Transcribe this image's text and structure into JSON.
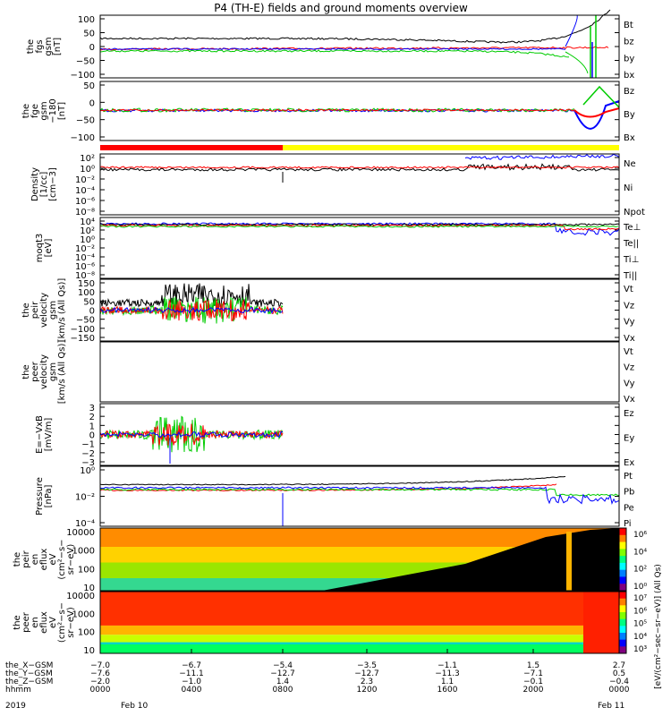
{
  "title": "P4 (TH-E) fields and ground moments overview",
  "colors": {
    "black": "#000000",
    "red": "#ff0000",
    "green": "#00cc00",
    "blue": "#0000ff",
    "yellow": "#ffff00"
  },
  "chart_data": [
    {
      "type": "line",
      "ylabel": [
        "the",
        "fgs",
        "gsm",
        "[nT]"
      ],
      "yticks": [
        "100",
        "50",
        "0",
        "−50",
        "−100"
      ],
      "ylim": [
        -100,
        100
      ],
      "legend": [
        {
          "name": "Bt",
          "color": "black"
        },
        {
          "name": "bz",
          "color": "red"
        },
        {
          "name": "by",
          "color": "green"
        },
        {
          "name": "bx",
          "color": "blue"
        }
      ]
    },
    {
      "type": "line",
      "ylabel": [
        "the",
        "fge",
        "gsm",
        "−180",
        "[nT]"
      ],
      "yticks": [
        "50",
        "0",
        "−50",
        "−100"
      ],
      "ylim": [
        -135,
        60
      ],
      "legend": [
        {
          "name": "Bz",
          "color": "red"
        },
        {
          "name": "By",
          "color": "green"
        },
        {
          "name": "Bx",
          "color": "blue"
        }
      ]
    },
    {
      "type": "line",
      "ylabel": [
        "Density",
        "[1/cc]",
        "[cm−3]"
      ],
      "yticks": [
        "10²",
        "10⁰",
        "10⁻²",
        "10⁻⁴",
        "10⁻⁶",
        "10⁻⁸"
      ],
      "scale": "log",
      "legend": [
        {
          "name": "Ne",
          "color": "red"
        },
        {
          "name": "Ni",
          "color": "black"
        },
        {
          "name": "Npot",
          "color": "blue"
        }
      ]
    },
    {
      "type": "line",
      "ylabel": [
        "moqt3",
        "[eV]"
      ],
      "yticks": [
        "10⁴",
        "10²",
        "10⁰",
        "10⁻²",
        "10⁻⁴",
        "10⁻⁶",
        "10⁻⁸"
      ],
      "scale": "log",
      "legend": [
        {
          "name": "Te⊥",
          "color": "red"
        },
        {
          "name": "Te||",
          "color": "black"
        },
        {
          "name": "Ti⊥",
          "color": "blue"
        },
        {
          "name": "Ti||",
          "color": "green"
        }
      ]
    },
    {
      "type": "line",
      "ylabel": [
        "the",
        "peir",
        "velocity",
        "gsm",
        "[km/s (All Qs)]"
      ],
      "yticks": [
        "150",
        "100",
        "50",
        "0",
        "−50",
        "−100",
        "−150"
      ],
      "ylim": [
        -150,
        150
      ],
      "legend": [
        {
          "name": "Vt",
          "color": "black"
        },
        {
          "name": "Vz",
          "color": "red"
        },
        {
          "name": "Vy",
          "color": "green"
        },
        {
          "name": "Vx",
          "color": "blue"
        }
      ]
    },
    {
      "type": "line",
      "ylabel": [
        "the",
        "peer",
        "velocity",
        "gsm",
        "[km/s (All Qs)]"
      ],
      "yticks": [],
      "legend": [
        {
          "name": "Vt",
          "color": "black"
        },
        {
          "name": "Vz",
          "color": "red"
        },
        {
          "name": "Vy",
          "color": "green"
        },
        {
          "name": "Vx",
          "color": "blue"
        }
      ]
    },
    {
      "type": "line",
      "ylabel": [
        "E=−VxB",
        "[mV/m]"
      ],
      "yticks": [
        "3",
        "2",
        "1",
        "0",
        "−1",
        "−2",
        "−3"
      ],
      "ylim": [
        -3,
        3
      ],
      "legend": [
        {
          "name": "Ez",
          "color": "red"
        },
        {
          "name": "Ey",
          "color": "green"
        },
        {
          "name": "Ex",
          "color": "blue"
        }
      ]
    },
    {
      "type": "line",
      "ylabel": [
        "Pressure",
        "[nPa]"
      ],
      "yticks": [
        "10⁰",
        "10⁻²",
        "10⁻⁴"
      ],
      "scale": "log",
      "legend": [
        {
          "name": "Pt",
          "color": "black"
        },
        {
          "name": "Pb",
          "color": "red"
        },
        {
          "name": "Pe",
          "color": "green"
        },
        {
          "name": "Pi",
          "color": "blue"
        }
      ]
    },
    {
      "type": "heatmap",
      "ylabel": [
        "the",
        "peir",
        "en",
        "eflux",
        "eV",
        "(cm²−s−",
        "sr−eV)"
      ],
      "yticks": [
        "10000",
        "1000",
        "100",
        "10"
      ],
      "colorbar": [
        "10⁶",
        "10⁴",
        "10²",
        "10⁰"
      ]
    },
    {
      "type": "heatmap",
      "ylabel": [
        "the",
        "peer",
        "en",
        "eflux",
        "eV",
        "(cm²−s−",
        "sr−eV)"
      ],
      "yticks": [
        "10000",
        "1000",
        "100",
        "10"
      ],
      "colorbar": [
        "10⁷",
        "10⁶",
        "10⁵",
        "10⁴",
        "10³"
      ]
    }
  ],
  "colorbar_label": "[eV/(cm²−sec−sr−eV)] (All Qs)",
  "xaxis": {
    "rows": [
      {
        "label": "the_X−GSM",
        "values": [
          "−7.0",
          "−6.7",
          "−5.4",
          "−3.5",
          "−1.1",
          "1.5",
          "2.7"
        ]
      },
      {
        "label": "the_Y−GSM",
        "values": [
          "−7.6",
          "−11.1",
          "−12.7",
          "−12.7",
          "−11.3",
          "−7.1",
          "0.5"
        ]
      },
      {
        "label": "the_Z−GSM",
        "values": [
          "−2.0",
          "−1.0",
          "1.4",
          "2.3",
          "1.1",
          "−0.1",
          "−0.4"
        ]
      },
      {
        "label": "hhmm",
        "values": [
          "0000",
          "0400",
          "0800",
          "1200",
          "1600",
          "2000",
          "0000"
        ]
      }
    ],
    "year": "2019",
    "date_start": "Feb 10",
    "date_end": "Feb 11"
  }
}
